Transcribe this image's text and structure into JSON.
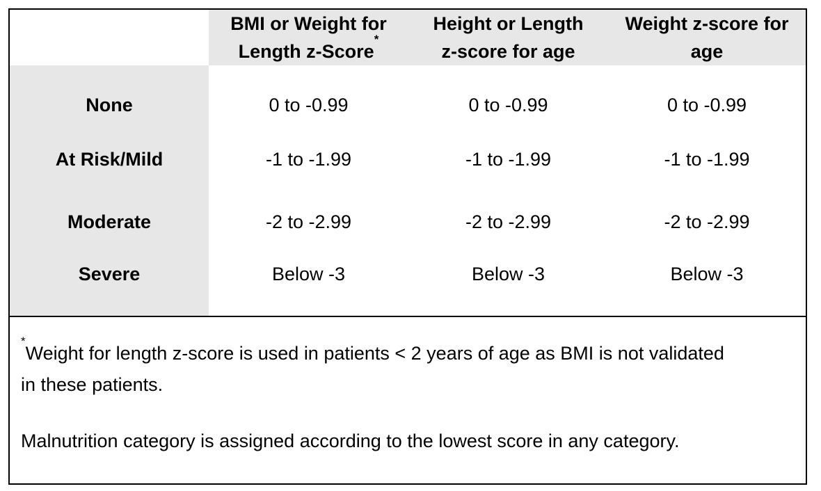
{
  "colors": {
    "shading": "#E7E7E7",
    "border": "#000000",
    "text": "#000000",
    "background": "#FFFFFF"
  },
  "table": {
    "corner": "",
    "header": {
      "bmi": {
        "line1": "BMI or Weight for",
        "line2": "Length z-Score",
        "sup": "*"
      },
      "height": {
        "line1": "Height or Length",
        "line2": "z-score for age"
      },
      "weight": {
        "line1": "Weight z-score for",
        "line2": "age"
      }
    },
    "rows": [
      {
        "label": "None",
        "bmi": "0 to -0.99",
        "height": "0 to -0.99",
        "weight": "0 to -0.99"
      },
      {
        "label": "At Risk/Mild",
        "bmi": "-1 to -1.99",
        "height": "-1 to -1.99",
        "weight": "-1 to -1.99"
      },
      {
        "label": "Moderate",
        "bmi": "-2 to -2.99",
        "height": "-2 to -2.99",
        "weight": "-2 to -2.99"
      },
      {
        "label": "Severe",
        "bmi": "Below -3",
        "height": "Below -3",
        "weight": "Below -3"
      }
    ]
  },
  "footnotes": {
    "sup": "*",
    "note1": "Weight for length z-score is used in patients < 2 years of age as BMI is not validated in these patients.",
    "note2": "Malnutrition category is assigned according to the lowest score in any category."
  }
}
